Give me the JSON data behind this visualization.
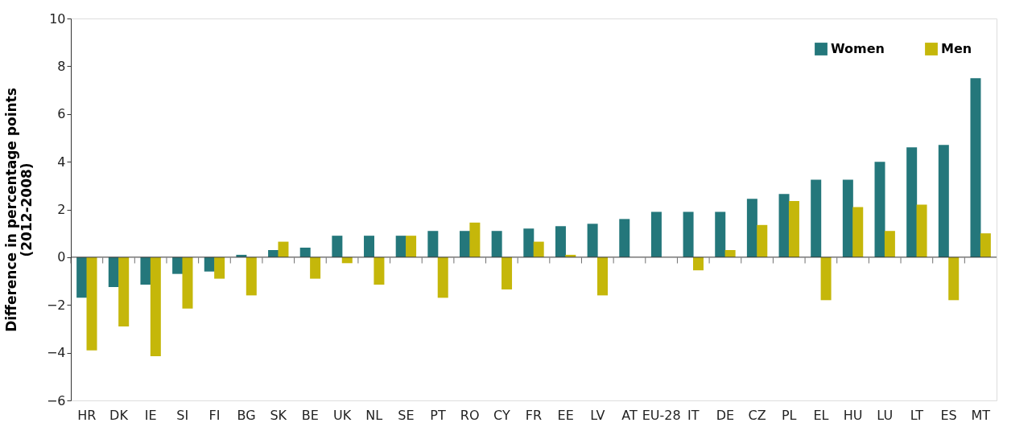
{
  "chart_data": {
    "type": "bar",
    "ylabel": "Difference in percentage points\n(2012-2008)",
    "categories": [
      "HR",
      "DK",
      "IE",
      "SI",
      "FI",
      "BG",
      "SK",
      "BE",
      "UK",
      "NL",
      "SE",
      "PT",
      "RO",
      "CY",
      "FR",
      "EE",
      "LV",
      "AT",
      "EU-28",
      "IT",
      "DE",
      "CZ",
      "PL",
      "EL",
      "HU",
      "LU",
      "LT",
      "ES",
      "MT"
    ],
    "series": [
      {
        "name": "Women",
        "color": "#24777b",
        "values": [
          -1.7,
          -1.25,
          -1.15,
          -0.7,
          -0.6,
          0.1,
          0.3,
          0.4,
          0.9,
          0.9,
          0.9,
          1.1,
          1.1,
          1.1,
          1.2,
          1.3,
          1.4,
          1.6,
          1.9,
          1.9,
          1.9,
          2.45,
          2.65,
          3.25,
          3.25,
          4.0,
          4.6,
          4.7,
          7.5
        ]
      },
      {
        "name": "Men",
        "color": "#c5b70a",
        "values": [
          -3.9,
          -2.9,
          -4.15,
          -2.15,
          -0.9,
          -1.6,
          0.65,
          -0.9,
          -0.25,
          -1.15,
          0.9,
          -1.7,
          1.45,
          -1.35,
          0.65,
          0.1,
          -1.6,
          null,
          null,
          -0.55,
          0.3,
          1.35,
          2.35,
          -1.8,
          2.1,
          1.1,
          2.2,
          -1.8,
          1.0
        ]
      }
    ],
    "ylim": [
      -6,
      10
    ],
    "yticks": [
      -6,
      -4,
      -2,
      0,
      2,
      4,
      6,
      8,
      10
    ],
    "grid": false,
    "legend": "top right",
    "ref_lines": [
      {
        "axis": "y",
        "value": 0,
        "color": "#333333"
      }
    ]
  }
}
